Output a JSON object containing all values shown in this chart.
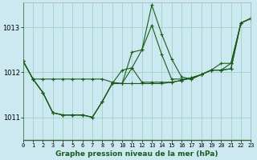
{
  "title": "Graphe pression niveau de la mer (hPa)",
  "bg_color": "#cce8f0",
  "grid_color": "#99ccbb",
  "line_color": "#1a5c1a",
  "xlim": [
    0,
    23
  ],
  "ylim": [
    1010.5,
    1013.55
  ],
  "yticks": [
    1011,
    1012,
    1013
  ],
  "xticks": [
    0,
    1,
    2,
    3,
    4,
    5,
    6,
    7,
    8,
    9,
    10,
    11,
    12,
    13,
    14,
    15,
    16,
    17,
    18,
    19,
    20,
    21,
    22,
    23
  ],
  "series": [
    [
      1012.25,
      1011.85,
      1011.85,
      1011.85,
      1011.85,
      1011.85,
      1011.85,
      1011.85,
      1011.85,
      1011.78,
      1011.75,
      1011.75,
      1011.75,
      1011.75,
      1011.75,
      1011.78,
      1011.82,
      1011.88,
      1011.95,
      1012.05,
      1012.05,
      1012.08,
      1013.1,
      1013.2
    ],
    [
      1012.25,
      1011.85,
      1011.55,
      1011.1,
      1011.05,
      1011.05,
      1011.05,
      1011.0,
      1011.35,
      1011.75,
      1011.75,
      1012.45,
      1012.5,
      1013.5,
      1012.85,
      1012.3,
      1011.9,
      1011.85,
      1011.95,
      1012.05,
      1012.05,
      1012.2,
      1013.1,
      1013.2
    ],
    [
      1012.25,
      1011.85,
      1011.55,
      1011.1,
      1011.05,
      1011.05,
      1011.05,
      1011.0,
      1011.35,
      1011.75,
      1011.75,
      1012.1,
      1012.5,
      1013.05,
      1012.4,
      1011.85,
      1011.85,
      1011.85,
      1011.95,
      1012.05,
      1012.2,
      1012.2,
      1013.1,
      1013.2
    ],
    [
      1012.25,
      1011.85,
      1011.55,
      1011.1,
      1011.05,
      1011.05,
      1011.05,
      1011.0,
      1011.35,
      1011.75,
      1012.05,
      1012.1,
      1011.78,
      1011.78,
      1011.78,
      1011.78,
      1011.82,
      1011.88,
      1011.95,
      1012.05,
      1012.05,
      1012.08,
      1013.1,
      1013.2
    ]
  ],
  "marker": "+",
  "marker_size": 3.0,
  "markeredgewidth": 0.8,
  "linewidth": 0.8
}
